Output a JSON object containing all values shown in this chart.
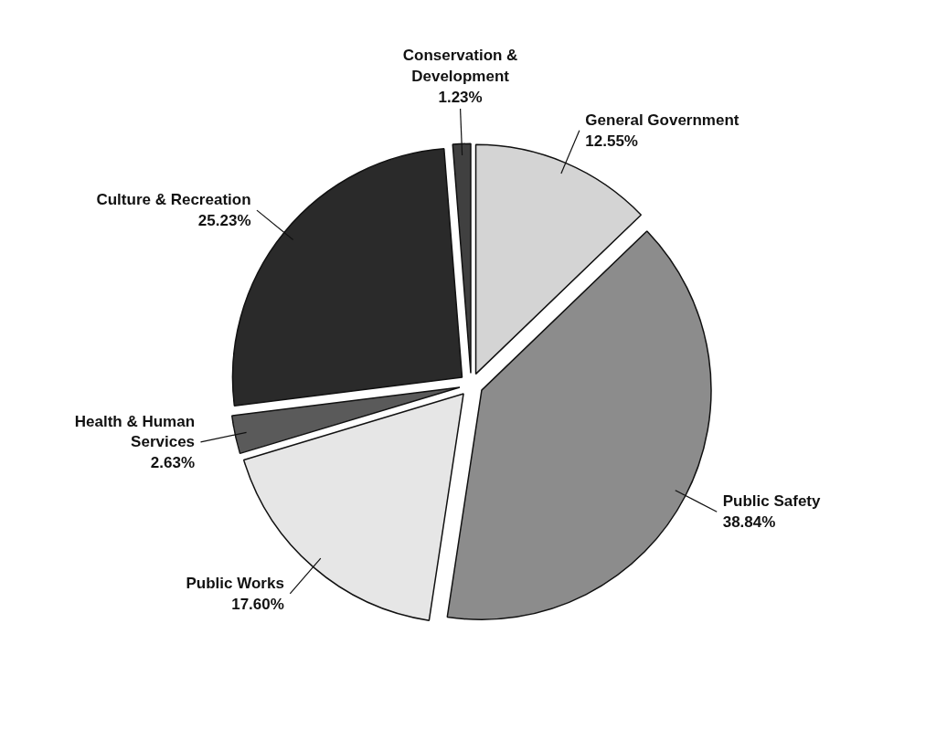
{
  "chart_data": {
    "type": "pie",
    "categories": [
      "General Government",
      "Public Safety",
      "Public Works",
      "Health & Human Services",
      "Culture & Recreation",
      "Conservation & Development"
    ],
    "values": [
      12.55,
      38.84,
      17.6,
      2.63,
      25.23,
      1.23
    ],
    "value_labels": [
      "12.55%",
      "38.84%",
      "17.60%",
      "2.63%",
      "25.23%",
      "1.23%"
    ],
    "colors": [
      "#d4d4d4",
      "#8c8c8c",
      "#e6e6e6",
      "#5a5a5a",
      "#2a2a2a",
      "#404040"
    ]
  }
}
